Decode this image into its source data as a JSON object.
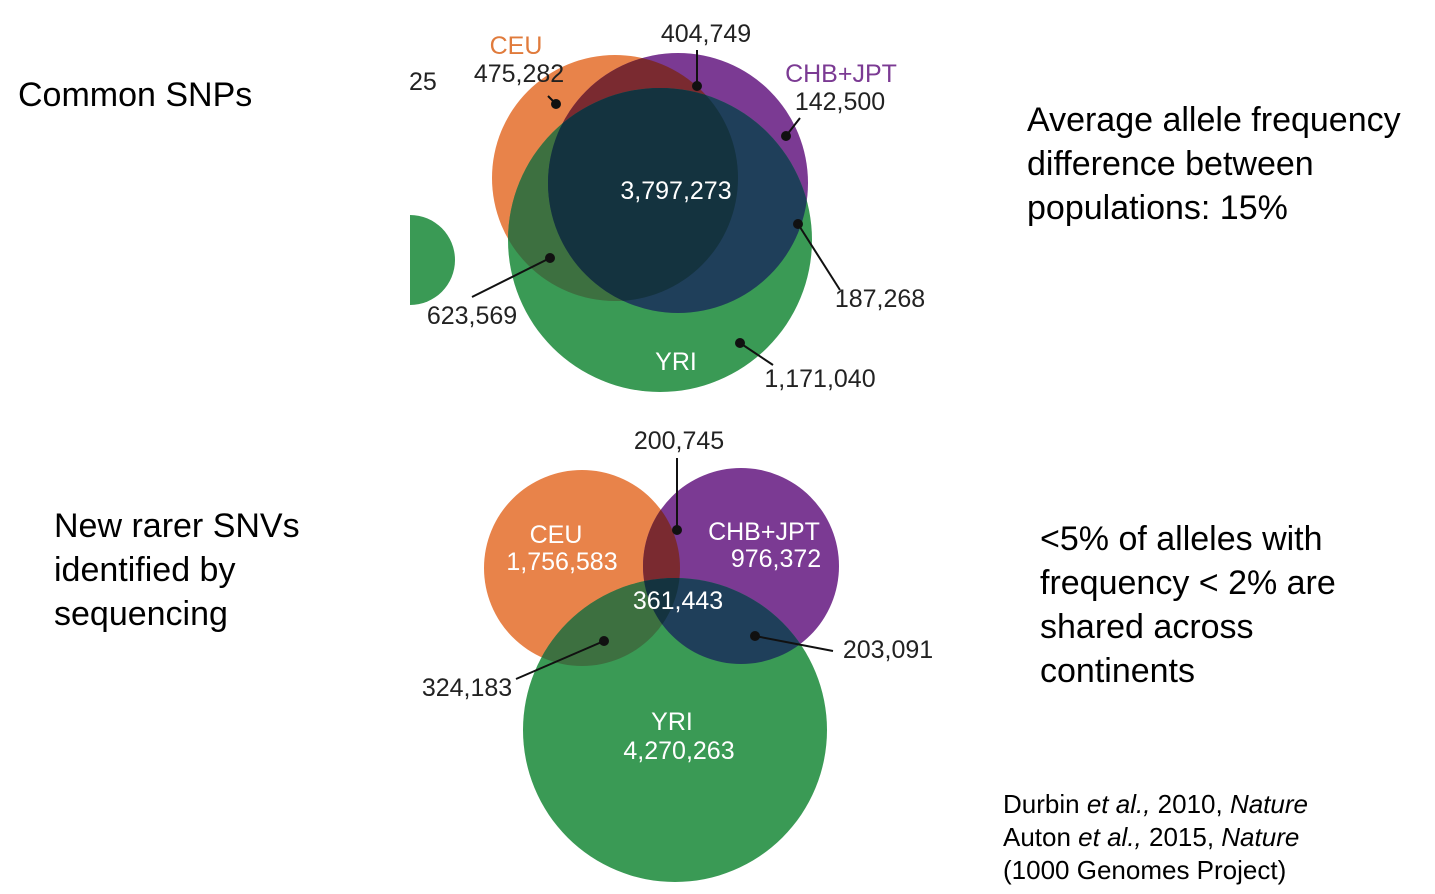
{
  "left": {
    "common_snps": "Common SNPs",
    "new_rarer_line1": "New rarer SNVs",
    "new_rarer_line2": "identified by",
    "new_rarer_line3": "sequencing"
  },
  "right": {
    "avg_line1": "Average allele frequency",
    "avg_line2": "difference between",
    "avg_line3": "populations: 15%",
    "rare_line1": "<5% of alleles with",
    "rare_line2": "frequency < 2% are",
    "rare_line3": "shared across",
    "rare_line4": "continents"
  },
  "citations": {
    "c1_author": "Durbin ",
    "c1_etal": "et al.,",
    "c1_year": " 2010, ",
    "c1_journal": "Nature",
    "c2_author": "Auton ",
    "c2_etal": "et al.,",
    "c2_year": " 2015, ",
    "c2_journal": "Nature",
    "c3": "(1000 Genomes Project)"
  },
  "top_venn": {
    "ceu_label": "CEU",
    "ceu_value": "475,282",
    "chb_label": "CHB+JPT",
    "chb_value": "142,500",
    "ceu_chb": "404,749",
    "all_three": "3,797,273",
    "ceu_yri": "623,569",
    "chb_yri": "187,268",
    "yri_label": "YRI",
    "yri_value": "1,171,040",
    "cropped_fragment": "25"
  },
  "bottom_venn": {
    "ceu_chb": "200,745",
    "ceu_label": "CEU",
    "ceu_value": "1,756,583",
    "chb_label": "CHB+JPT",
    "chb_value": "976,372",
    "all_three": "361,443",
    "chb_yri": "203,091",
    "ceu_yri": "324,183",
    "yri_label": "YRI",
    "yri_value": "4,270,263"
  },
  "colors": {
    "ceu": "#e8834a",
    "chb": "#7b3a93",
    "yri": "#3a9a55",
    "ceu_chb": "#7a2a30",
    "ceu_yri": "#3d7040",
    "chb_yri": "#1f3f5a",
    "all": "#14333f",
    "ceu_text": "#e07b3c",
    "chb_text": "#7b3a93"
  }
}
